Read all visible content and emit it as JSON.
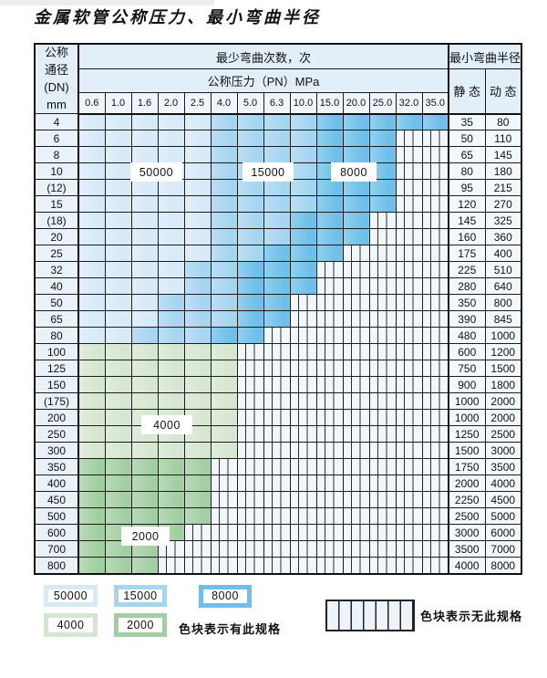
{
  "title": "金属软管公称压力、最小弯曲半径",
  "table": {
    "dn_header_lines": [
      "公称",
      "通径",
      "(DN)",
      "mm"
    ],
    "cycles_header": "最少弯曲次数，次",
    "pressure_header": "公称压力（PN）MPa",
    "pressure_values": [
      "0.6",
      "1.0",
      "1.6",
      "2.0",
      "2.5",
      "4.0",
      "5.0",
      "6.3",
      "10.0",
      "15.0",
      "20.0",
      "25.0",
      "32.0",
      "35.0"
    ],
    "radius_header": "最小弯曲半径",
    "static_label": "静 态",
    "dynamic_label": "动 态",
    "cell_code_key": {
      "L": "50000",
      "M": "15000",
      "D": "8000",
      "G": "4000",
      "g": "2000",
      "N": "无此规格"
    },
    "rows": [
      {
        "dn": "4",
        "cells": "LLLLLMMMMDDDDD",
        "static": "35",
        "dynamic": "80"
      },
      {
        "dn": "6",
        "cells": "LLLLLMMMMDDDNN",
        "static": "50",
        "dynamic": "110"
      },
      {
        "dn": "8",
        "cells": "LLLLLMMMMDDDNN",
        "static": "65",
        "dynamic": "145"
      },
      {
        "dn": "10",
        "cells": "LLLLLMMMMDDDNN",
        "static": "80",
        "dynamic": "180"
      },
      {
        "dn": "(12)",
        "cells": "LLLLLMMMMDDDNN",
        "static": "95",
        "dynamic": "215"
      },
      {
        "dn": "15",
        "cells": "LLLLLMMMMDDDNN",
        "static": "120",
        "dynamic": "270"
      },
      {
        "dn": "(18)",
        "cells": "LLLLLMMMDDDNNN",
        "static": "145",
        "dynamic": "325"
      },
      {
        "dn": "20",
        "cells": "LLLLLMMMDDDNNN",
        "static": "160",
        "dynamic": "360"
      },
      {
        "dn": "25",
        "cells": "LLLLLMMDDDNNNN",
        "static": "175",
        "dynamic": "400"
      },
      {
        "dn": "32",
        "cells": "LLLLMMDDDNNNNN",
        "static": "225",
        "dynamic": "510"
      },
      {
        "dn": "40",
        "cells": "LLLLMMDDDNNNNN",
        "static": "280",
        "dynamic": "640"
      },
      {
        "dn": "50",
        "cells": "LLLMMMDDNNNNNN",
        "static": "350",
        "dynamic": "800"
      },
      {
        "dn": "65",
        "cells": "LLLMMMDDNNNNNN",
        "static": "390",
        "dynamic": "845"
      },
      {
        "dn": "80",
        "cells": "LLMMMDDNNNNNNN",
        "static": "480",
        "dynamic": "1000"
      },
      {
        "dn": "100",
        "cells": "GGGGGGNNNNNNNN",
        "static": "600",
        "dynamic": "1200"
      },
      {
        "dn": "125",
        "cells": "GGGGGGNNNNNNNN",
        "static": "750",
        "dynamic": "1500"
      },
      {
        "dn": "150",
        "cells": "GGGGGGNNNNNNNN",
        "static": "900",
        "dynamic": "1800"
      },
      {
        "dn": "(175)",
        "cells": "GGGGGGNNNNNNNN",
        "static": "1000",
        "dynamic": "2000"
      },
      {
        "dn": "200",
        "cells": "GGGGGGNNNNNNNN",
        "static": "1000",
        "dynamic": "2000"
      },
      {
        "dn": "250",
        "cells": "GGGGGGNNNNNNNN",
        "static": "1250",
        "dynamic": "2500"
      },
      {
        "dn": "300",
        "cells": "GGGGGGNNNNNNNN",
        "static": "1500",
        "dynamic": "3000"
      },
      {
        "dn": "350",
        "cells": "gggggNNNNNNNNN",
        "static": "1750",
        "dynamic": "3500"
      },
      {
        "dn": "400",
        "cells": "gggggNNNNNNNNN",
        "static": "2000",
        "dynamic": "4000"
      },
      {
        "dn": "450",
        "cells": "gggggNNNNNNNNN",
        "static": "2250",
        "dynamic": "4500"
      },
      {
        "dn": "500",
        "cells": "gggggNNNNNNNNN",
        "static": "2500",
        "dynamic": "5000"
      },
      {
        "dn": "600",
        "cells": "ggggNNNNNNNNNN",
        "static": "3000",
        "dynamic": "6000"
      },
      {
        "dn": "700",
        "cells": "gggNNNNNNNNNNN",
        "static": "3500",
        "dynamic": "7000"
      },
      {
        "dn": "800",
        "cells": "gggNNNNNNNNNNN",
        "static": "4000",
        "dynamic": "8000"
      }
    ]
  },
  "overlay_labels": [
    {
      "id": "b50000",
      "text": "50000"
    },
    {
      "id": "b15000",
      "text": "15000"
    },
    {
      "id": "b8000",
      "text": "8000"
    },
    {
      "id": "g4000",
      "text": "4000"
    },
    {
      "id": "g2000",
      "text": "2000"
    }
  ],
  "legend": {
    "items": [
      {
        "key": "l",
        "label": "50000"
      },
      {
        "key": "m",
        "label": "15000"
      },
      {
        "key": "d",
        "label": "8000"
      },
      {
        "key": "g4",
        "label": "4000"
      },
      {
        "key": "g2",
        "label": "2000"
      }
    ],
    "has_spec_text": "色块表示有此规格",
    "no_spec_text": "色块表示无此规格"
  },
  "colors": {
    "cycles_50000": "#d7eaf8",
    "cycles_15000": "#a6d5f1",
    "cycles_8000": "#6ec0ea",
    "cycles_4000": "#d5e7d0",
    "cycles_2000": "#a2cfa2",
    "header_bg": "#e2eef8",
    "stripe_bg": "#f1f7fb",
    "grid": "#1c1c1c"
  }
}
